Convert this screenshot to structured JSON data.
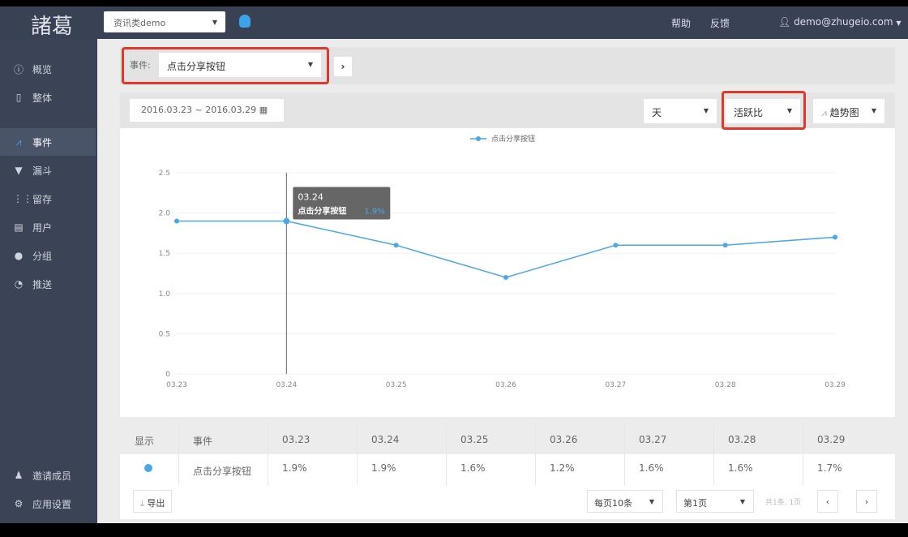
{
  "header": {
    "logo": "諸葛",
    "app_select": "资讯类demo",
    "platform_icon": "android-icon",
    "help": "帮助",
    "feedback": "反馈",
    "user": "demo@zhugeio.com"
  },
  "sidebar": {
    "items": [
      {
        "label": "概览",
        "icon": "dashboard-icon"
      },
      {
        "label": "整体",
        "icon": "tablet-icon"
      },
      {
        "label": "事件",
        "icon": "line-chart-icon",
        "active": true
      },
      {
        "label": "漏斗",
        "icon": "funnel-icon"
      },
      {
        "label": "留存",
        "icon": "retention-icon"
      },
      {
        "label": "用户",
        "icon": "document-icon"
      },
      {
        "label": "分组",
        "icon": "group-icon"
      },
      {
        "label": "推送",
        "icon": "push-icon"
      }
    ],
    "bottom": [
      {
        "label": "邀请成员",
        "icon": "user-icon"
      },
      {
        "label": "应用设置",
        "icon": "gear-icon"
      }
    ]
  },
  "event_bar": {
    "label": "事件:",
    "selected": "点击分享按钮"
  },
  "filters": {
    "date_range": "2016.03.23 ~ 2016.03.29",
    "granularity": "天",
    "metric": "活跃比",
    "chart_type": "趋势图"
  },
  "chart_data": {
    "type": "line",
    "categories": [
      "03.23",
      "03.24",
      "03.25",
      "03.26",
      "03.27",
      "03.28",
      "03.29"
    ],
    "series": [
      {
        "name": "点击分享按钮",
        "values": [
          1.9,
          1.9,
          1.6,
          1.2,
          1.6,
          1.6,
          1.7
        ]
      }
    ],
    "ylim": [
      0,
      2.5
    ],
    "yticks": [
      "0",
      "0.5",
      "1.0",
      "1.5",
      "2.0",
      "2.5"
    ],
    "legend": "top-center",
    "grid": true,
    "color": "#4aa8e8",
    "tooltip": {
      "date": "03.24",
      "series": "点击分享按钮",
      "value": "1.9%"
    }
  },
  "table": {
    "headers": [
      "显示",
      "事件",
      "03.23",
      "03.24",
      "03.25",
      "03.26",
      "03.27",
      "03.28",
      "03.29"
    ],
    "rows": [
      {
        "event": "点击分享按钮",
        "values": [
          "1.9%",
          "1.9%",
          "1.6%",
          "1.2%",
          "1.6%",
          "1.6%",
          "1.7%"
        ]
      }
    ]
  },
  "footer": {
    "export": "导出",
    "page_size": "每页10条",
    "page": "第1页",
    "summary": "共1条, 1页",
    "prev": "‹",
    "next": "›"
  }
}
